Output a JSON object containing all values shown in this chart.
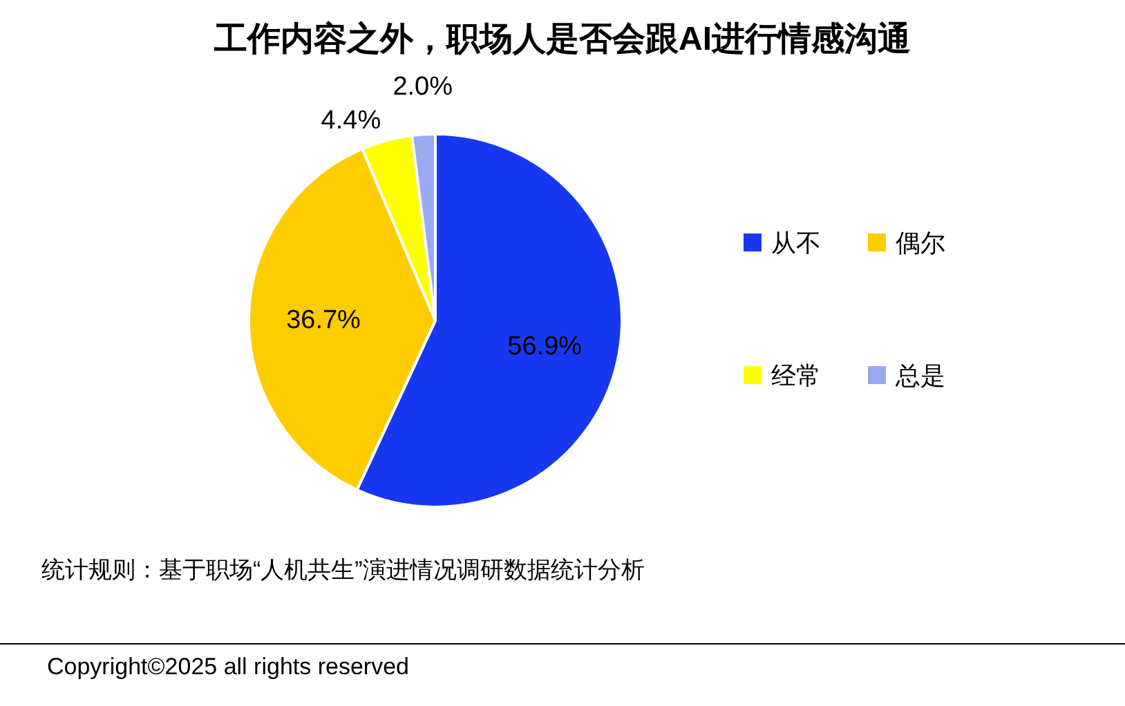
{
  "chart_data": {
    "type": "pie",
    "title": "工作内容之外，职场人是否会跟AI进行情感沟通",
    "categories": [
      "从不",
      "偶尔",
      "经常",
      "总是"
    ],
    "values": [
      56.9,
      36.7,
      4.4,
      2.0
    ],
    "colors": [
      "#1738f0",
      "#ffcc00",
      "#ffff00",
      "#99aaee"
    ],
    "value_labels": [
      "56.9%",
      "36.7%",
      "4.4%",
      "2.0%"
    ],
    "legend": "right",
    "annotations": [
      "统计规则：基于职场“人机共生”演进情况调研数据统计分析",
      "Copyright©2025 all rights reserved"
    ]
  }
}
